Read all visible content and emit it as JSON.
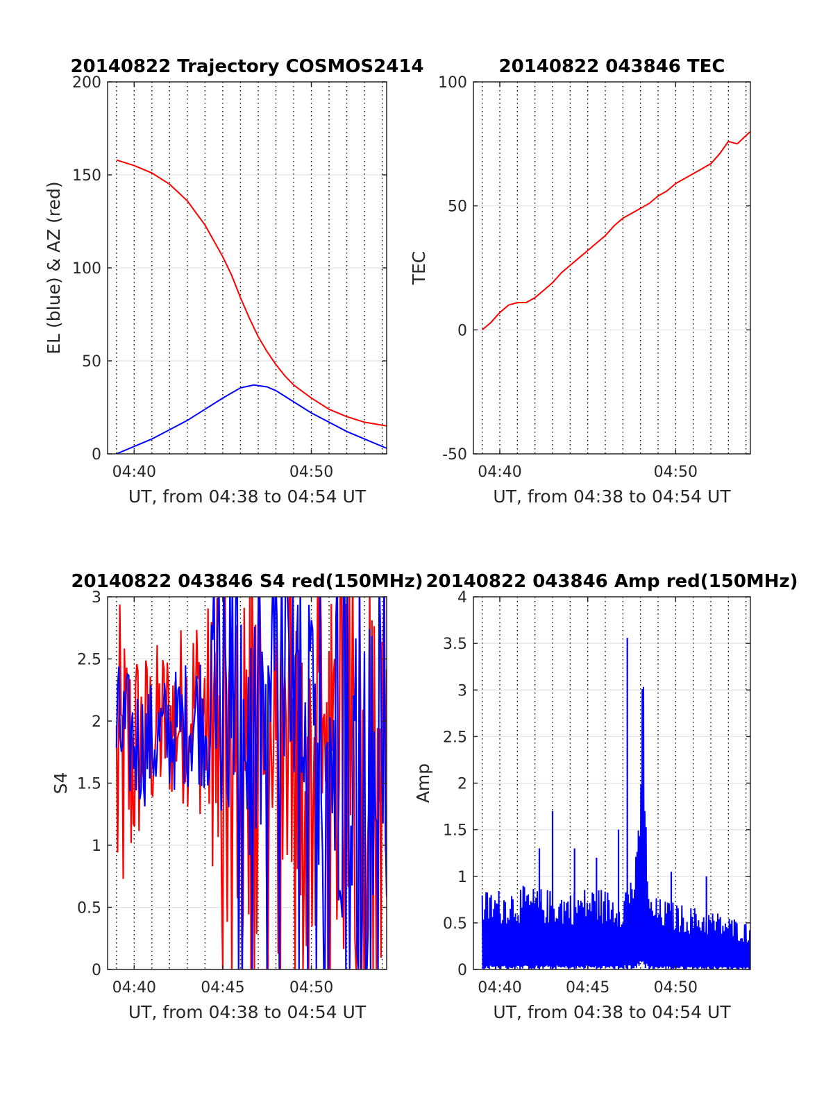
{
  "colors": {
    "red": "#ff0000",
    "blue": "#0000ff",
    "axis": "#262626",
    "grid": "#e3e3e3",
    "dotted": "#000000"
  },
  "chart_data": [
    {
      "type": "line",
      "title": "20140822 Trajectory COSMOS2414",
      "xlabel": "UT, from 04:38 to 04:54 UT",
      "ylabel": "EL (blue) & AZ (red)",
      "xlim": [
        "04:38:30",
        "04:54:15"
      ],
      "ylim": [
        0,
        200
      ],
      "yticks": [
        "0",
        "50",
        "100",
        "150",
        "200"
      ],
      "xticks": [
        "04:40",
        "04:50"
      ],
      "grid": true,
      "series": [
        {
          "color": "red",
          "x": [
            "04:39:00",
            "04:40:00",
            "04:41:00",
            "04:42:00",
            "04:43:00",
            "04:44:00",
            "04:45:00",
            "04:45:30",
            "04:46:00",
            "04:46:30",
            "04:47:00",
            "04:47:30",
            "04:48:00",
            "04:48:30",
            "04:49:00",
            "04:50:00",
            "04:51:00",
            "04:52:00",
            "04:53:00",
            "04:54:15"
          ],
          "y": [
            158,
            155,
            151,
            145,
            136,
            123,
            106,
            96,
            84,
            73,
            63,
            55,
            48,
            42,
            37,
            30,
            24,
            20,
            17,
            15
          ]
        },
        {
          "color": "blue",
          "x": [
            "04:39:00",
            "04:40:00",
            "04:41:00",
            "04:42:00",
            "04:43:00",
            "04:44:00",
            "04:45:00",
            "04:46:00",
            "04:46:45",
            "04:47:30",
            "04:48:00",
            "04:49:00",
            "04:50:00",
            "04:51:00",
            "04:52:00",
            "04:53:00",
            "04:54:15"
          ],
          "y": [
            0,
            4,
            8,
            13,
            18,
            24,
            30,
            35.5,
            37,
            36,
            34,
            28,
            22,
            17,
            12,
            8,
            3
          ]
        }
      ]
    },
    {
      "type": "line",
      "title": "20140822 043846 TEC",
      "xlabel": "UT, from 04:38 to 04:54 UT",
      "ylabel": "TEC",
      "xlim": [
        "04:38:30",
        "04:54:15"
      ],
      "ylim": [
        -50,
        100
      ],
      "yticks": [
        "-50",
        "0",
        "50",
        "100"
      ],
      "xticks": [
        "04:40",
        "04:50"
      ],
      "grid": true,
      "series": [
        {
          "color": "red",
          "x": [
            "04:39:00",
            "04:39:30",
            "04:40:00",
            "04:40:30",
            "04:41:00",
            "04:41:30",
            "04:42:00",
            "04:42:30",
            "04:43:00",
            "04:43:30",
            "04:44:00",
            "04:44:30",
            "04:45:00",
            "04:45:30",
            "04:46:00",
            "04:46:30",
            "04:47:00",
            "04:47:30",
            "04:48:00",
            "04:48:30",
            "04:49:00",
            "04:49:30",
            "04:50:00",
            "04:50:30",
            "04:51:00",
            "04:51:30",
            "04:52:00",
            "04:52:30",
            "04:53:00",
            "04:53:30",
            "04:54:15"
          ],
          "y": [
            0,
            3,
            7,
            10,
            11,
            11,
            13,
            16,
            19,
            23,
            26,
            29,
            32,
            35,
            38,
            42,
            45,
            47,
            49,
            51,
            54,
            56,
            59,
            61,
            63,
            65,
            67,
            71,
            76,
            75,
            80
          ]
        }
      ]
    },
    {
      "type": "line",
      "title": "20140822 043846 S4 red(150MHz)",
      "xlabel": "UT, from 04:38 to 04:54 UT",
      "ylabel": "S4",
      "xlim": [
        "04:38:30",
        "04:54:15"
      ],
      "ylim": [
        0,
        3
      ],
      "yticks": [
        "0",
        "0.5",
        "1",
        "1.5",
        "2",
        "2.5",
        "3"
      ],
      "xticks": [
        "04:40",
        "04:45",
        "04:50"
      ],
      "grid": true,
      "series": [
        {
          "color": "red",
          "x_range": [
            "04:39:00",
            "04:54:15"
          ],
          "points": 240,
          "band": [
            [
              0,
              3.0
            ],
            [
              1.1,
              2.6
            ],
            [
              1.3,
              2.7
            ],
            [
              1.3,
              3.0
            ],
            [
              0.4,
              3.0
            ],
            [
              0,
              3.0
            ],
            [
              0,
              3.0
            ],
            [
              0,
              3.0
            ],
            [
              0,
              3.0
            ],
            [
              0,
              3.0
            ],
            [
              0,
              3.0
            ]
          ]
        },
        {
          "color": "blue",
          "x_range": [
            "04:39:00",
            "04:54:15"
          ],
          "points": 220,
          "band": [
            [
              1.3,
              2.5
            ],
            [
              1.3,
              2.3
            ],
            [
              1.4,
              2.4
            ],
            [
              1.5,
              2.6
            ],
            [
              1.2,
              3.0
            ],
            [
              0.6,
              3.0
            ],
            [
              1.5,
              3.0
            ],
            [
              0.9,
              3.0
            ],
            [
              0.6,
              3.0
            ],
            [
              0,
              3.0
            ],
            [
              0,
              3.0
            ]
          ]
        }
      ]
    },
    {
      "type": "line",
      "title": "20140822 043846 Amp red(150MHz)",
      "xlabel": "UT, from 04:38 to 04:54 UT",
      "ylabel": "Amp",
      "xlim": [
        "04:38:30",
        "04:54:15"
      ],
      "ylim": [
        0,
        4
      ],
      "yticks": [
        "0",
        "0.5",
        "1",
        "1.5",
        "2",
        "2.5",
        "3",
        "3.5",
        "4"
      ],
      "xticks": [
        "04:40",
        "04:45",
        "04:50"
      ],
      "grid": true,
      "series": [
        {
          "color": "blue",
          "x_range": [
            "04:39:00",
            "04:54:15"
          ],
          "points": 420,
          "envelope": [
            [
              0,
              0.85
            ],
            [
              0.15,
              0.9
            ],
            [
              0.3,
              0.85
            ],
            [
              0.42,
              0.9
            ],
            [
              0.52,
              0.82
            ],
            [
              0.58,
              1.3
            ],
            [
              0.6,
              3.56
            ],
            [
              0.62,
              0.8
            ],
            [
              0.75,
              0.7
            ],
            [
              0.88,
              0.62
            ],
            [
              1.0,
              0.5
            ]
          ],
          "spikes": [
            [
              "04:42:15",
              1.3
            ],
            [
              "04:43:00",
              1.7
            ],
            [
              "04:44:15",
              1.3
            ],
            [
              "04:45:30",
              1.2
            ],
            [
              "04:46:45",
              1.5
            ],
            [
              "04:47:15",
              3.56
            ],
            [
              "04:49:45",
              1.05
            ],
            [
              "04:51:45",
              1.0
            ]
          ]
        }
      ]
    }
  ]
}
